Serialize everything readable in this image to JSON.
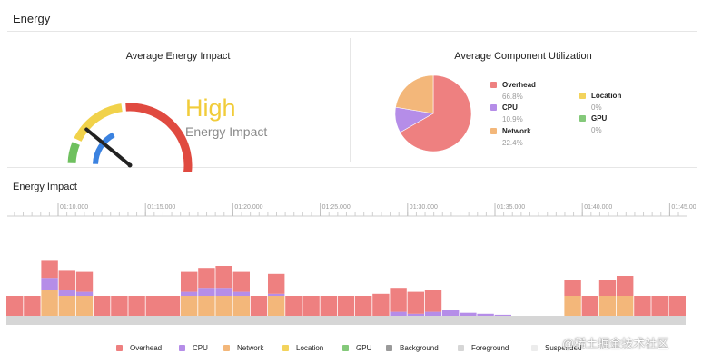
{
  "window": {
    "title": "Energy"
  },
  "gauge_panel": {
    "title": "Average Energy Impact",
    "level_text": "High",
    "subtitle": "Energy Impact",
    "needle_fraction": 0.18
  },
  "utilization_panel": {
    "title": "Average Component Utilization",
    "components": [
      {
        "name": "Overhead",
        "percent": "66.8%",
        "value": 66.8,
        "color": "#ee8080"
      },
      {
        "name": "CPU",
        "percent": "10.9%",
        "value": 10.9,
        "color": "#b58de8"
      },
      {
        "name": "Network",
        "percent": "22.4%",
        "value": 22.4,
        "color": "#f3b77a"
      },
      {
        "name": "Location",
        "percent": "0%",
        "value": 0,
        "color": "#f3d35c"
      },
      {
        "name": "GPU",
        "percent": "0%",
        "value": 0,
        "color": "#84c97a"
      }
    ]
  },
  "timeline": {
    "title": "Energy Impact",
    "tick_labels": [
      "01:10.000",
      "01:15.000",
      "01:20.000",
      "01:25.000",
      "01:30.000",
      "01:35.000",
      "01:40.000",
      "01:45.000"
    ],
    "bars": [
      {
        "network": 0,
        "cpu": 0,
        "overhead": 1.0
      },
      {
        "network": 0,
        "cpu": 0,
        "overhead": 1.0
      },
      {
        "network": 1.3,
        "cpu": 0.6,
        "overhead": 0.9
      },
      {
        "network": 1.0,
        "cpu": 0.3,
        "overhead": 1.0
      },
      {
        "network": 1.0,
        "cpu": 0.2,
        "overhead": 1.0
      },
      {
        "network": 0,
        "cpu": 0,
        "overhead": 1.0
      },
      {
        "network": 0,
        "cpu": 0,
        "overhead": 1.0
      },
      {
        "network": 0,
        "cpu": 0,
        "overhead": 1.0
      },
      {
        "network": 0,
        "cpu": 0,
        "overhead": 1.0
      },
      {
        "network": 0,
        "cpu": 0,
        "overhead": 1.0
      },
      {
        "network": 1.0,
        "cpu": 0.2,
        "overhead": 1.0
      },
      {
        "network": 1.0,
        "cpu": 0.4,
        "overhead": 1.0
      },
      {
        "network": 1.0,
        "cpu": 0.4,
        "overhead": 1.1
      },
      {
        "network": 1.0,
        "cpu": 0.2,
        "overhead": 1.0
      },
      {
        "network": 0,
        "cpu": 0,
        "overhead": 1.0
      },
      {
        "network": 1.0,
        "cpu": 0.1,
        "overhead": 1.0
      },
      {
        "network": 0,
        "cpu": 0,
        "overhead": 1.0
      },
      {
        "network": 0,
        "cpu": 0,
        "overhead": 1.0
      },
      {
        "network": 0,
        "cpu": 0,
        "overhead": 1.0
      },
      {
        "network": 0,
        "cpu": 0,
        "overhead": 1.0
      },
      {
        "network": 0,
        "cpu": 0,
        "overhead": 1.0
      },
      {
        "network": 0,
        "cpu": 0,
        "overhead": 1.1
      },
      {
        "network": 0,
        "cpu": 0.2,
        "overhead": 1.2
      },
      {
        "network": 0,
        "cpu": 0.1,
        "overhead": 1.1
      },
      {
        "network": 0,
        "cpu": 0.2,
        "overhead": 1.1
      },
      {
        "network": 0,
        "cpu": 0.3,
        "overhead": 0
      },
      {
        "network": 0,
        "cpu": 0.15,
        "overhead": 0
      },
      {
        "network": 0,
        "cpu": 0.1,
        "overhead": 0
      },
      {
        "network": 0,
        "cpu": 0.05,
        "overhead": 0
      },
      {
        "network": 0,
        "cpu": 0,
        "overhead": 0
      },
      {
        "network": 0,
        "cpu": 0,
        "overhead": 0
      },
      {
        "network": 0,
        "cpu": 0,
        "overhead": 0
      },
      {
        "network": 1.0,
        "cpu": 0,
        "overhead": 0.8
      },
      {
        "network": 0,
        "cpu": 0,
        "overhead": 1.0
      },
      {
        "network": 1.0,
        "cpu": 0,
        "overhead": 0.8
      },
      {
        "network": 1.0,
        "cpu": 0,
        "overhead": 1.0
      },
      {
        "network": 0,
        "cpu": 0,
        "overhead": 1.0
      },
      {
        "network": 0,
        "cpu": 0,
        "overhead": 1.0
      },
      {
        "network": 0,
        "cpu": 0,
        "overhead": 1.0
      }
    ],
    "legend": [
      {
        "name": "Overhead",
        "color": "#ee8080"
      },
      {
        "name": "CPU",
        "color": "#b58de8"
      },
      {
        "name": "Network",
        "color": "#f3b77a"
      },
      {
        "name": "Location",
        "color": "#f3d35c"
      },
      {
        "name": "GPU",
        "color": "#84c97a"
      },
      {
        "name": "Background",
        "color": "#9a9a9a"
      },
      {
        "name": "Foreground",
        "color": "#d6d6d6"
      },
      {
        "name": "Suspended",
        "color": "#ececec"
      }
    ]
  },
  "watermark": "@稀土掘金技术社区"
}
